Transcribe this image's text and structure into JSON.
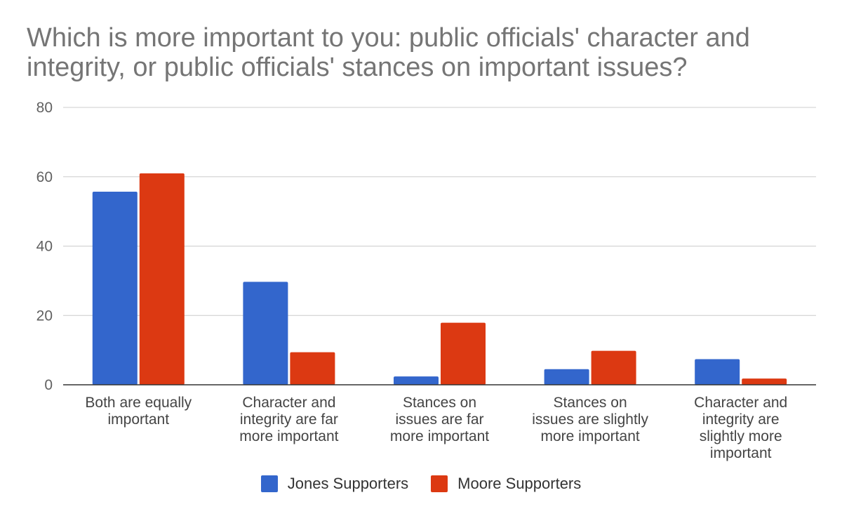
{
  "chart_data": {
    "type": "bar",
    "title_lines": [
      "Which is more important to you: public officials' character and",
      "integrity, or public officials' stances on important issues?"
    ],
    "categories": [
      [
        "Both are equally",
        "important"
      ],
      [
        "Character and",
        "integrity are far",
        "more important"
      ],
      [
        "Stances on",
        "issues are far",
        "more important"
      ],
      [
        "Stances on",
        "issues are slightly",
        "more important"
      ],
      [
        "Character and",
        "integrity are",
        "slightly more",
        "important"
      ]
    ],
    "series": [
      {
        "name": "Jones Supporters",
        "color": "#3366cc",
        "values": [
          55.7,
          29.7,
          2.4,
          4.5,
          7.4
        ]
      },
      {
        "name": "Moore Supporters",
        "color": "#dc3912",
        "values": [
          61.0,
          9.4,
          17.9,
          9.8,
          1.8
        ]
      }
    ],
    "ylim": [
      0,
      80
    ],
    "yticks": [
      "0",
      "20",
      "40",
      "60",
      "80"
    ],
    "xlabel": "",
    "ylabel": "",
    "legend_position": "bottom"
  }
}
